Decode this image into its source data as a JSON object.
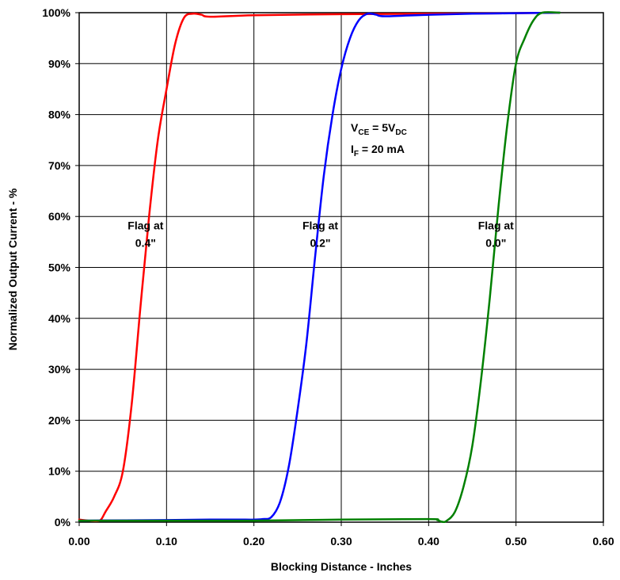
{
  "chart_data": {
    "type": "line",
    "title": "",
    "xlabel": "Blocking Distance - Inches",
    "ylabel": "Normalized Output Current - %",
    "xlim": [
      0,
      0.6
    ],
    "ylim": [
      0,
      100
    ],
    "grid": true,
    "x_ticks": [
      "0.00",
      "0.10",
      "0.20",
      "0.30",
      "0.40",
      "0.50",
      "0.60"
    ],
    "y_ticks": [
      "0%",
      "10%",
      "20%",
      "30%",
      "40%",
      "50%",
      "60%",
      "70%",
      "80%",
      "90%",
      "100%"
    ],
    "series": [
      {
        "color": "#ff0000",
        "label_lines": [
          "Flag at",
          "0.4\""
        ],
        "points": [
          [
            0.0,
            0.5
          ],
          [
            0.01,
            0.3
          ],
          [
            0.02,
            0.2
          ],
          [
            0.025,
            0.5
          ],
          [
            0.03,
            2
          ],
          [
            0.04,
            5
          ],
          [
            0.05,
            10
          ],
          [
            0.06,
            23
          ],
          [
            0.07,
            42
          ],
          [
            0.08,
            60
          ],
          [
            0.09,
            75
          ],
          [
            0.1,
            85
          ],
          [
            0.11,
            94
          ],
          [
            0.12,
            99
          ],
          [
            0.13,
            99.8
          ],
          [
            0.14,
            99.6
          ],
          [
            0.15,
            99.2
          ],
          [
            0.2,
            99.5
          ],
          [
            0.3,
            99.7
          ],
          [
            0.4,
            99.8
          ],
          [
            0.5,
            99.9
          ],
          [
            0.55,
            100
          ]
        ]
      },
      {
        "color": "#0000ff",
        "label_lines": [
          "Flag at",
          "0.2\""
        ],
        "points": [
          [
            0.0,
            0.3
          ],
          [
            0.1,
            0.4
          ],
          [
            0.15,
            0.5
          ],
          [
            0.19,
            0.5
          ],
          [
            0.2,
            0.5
          ],
          [
            0.21,
            0.6
          ],
          [
            0.22,
            1
          ],
          [
            0.23,
            4
          ],
          [
            0.24,
            11
          ],
          [
            0.25,
            22
          ],
          [
            0.26,
            35
          ],
          [
            0.27,
            52
          ],
          [
            0.28,
            68
          ],
          [
            0.29,
            80
          ],
          [
            0.3,
            89
          ],
          [
            0.31,
            95
          ],
          [
            0.32,
            98.5
          ],
          [
            0.33,
            99.8
          ],
          [
            0.34,
            99.6
          ],
          [
            0.35,
            99.3
          ],
          [
            0.4,
            99.6
          ],
          [
            0.45,
            99.8
          ],
          [
            0.5,
            99.9
          ],
          [
            0.55,
            100
          ]
        ]
      },
      {
        "color": "#008000",
        "label_lines": [
          "Flag at",
          "0.0\""
        ],
        "points": [
          [
            0.0,
            0.3
          ],
          [
            0.1,
            0.3
          ],
          [
            0.2,
            0.3
          ],
          [
            0.3,
            0.5
          ],
          [
            0.4,
            0.6
          ],
          [
            0.41,
            0.4
          ],
          [
            0.415,
            0.1
          ],
          [
            0.42,
            0.2
          ],
          [
            0.43,
            2
          ],
          [
            0.44,
            7
          ],
          [
            0.45,
            15
          ],
          [
            0.46,
            28
          ],
          [
            0.47,
            44
          ],
          [
            0.48,
            62
          ],
          [
            0.49,
            78
          ],
          [
            0.5,
            90
          ],
          [
            0.51,
            95
          ],
          [
            0.52,
            98.5
          ],
          [
            0.53,
            100
          ],
          [
            0.55,
            100
          ]
        ]
      }
    ],
    "annotation": {
      "line1": {
        "main": "V",
        "sub1": "CE",
        "mid": " = 5V",
        "sub2": "DC"
      },
      "line2": {
        "main": "I",
        "sub1": "F",
        "mid": " = 20 mA"
      }
    }
  }
}
